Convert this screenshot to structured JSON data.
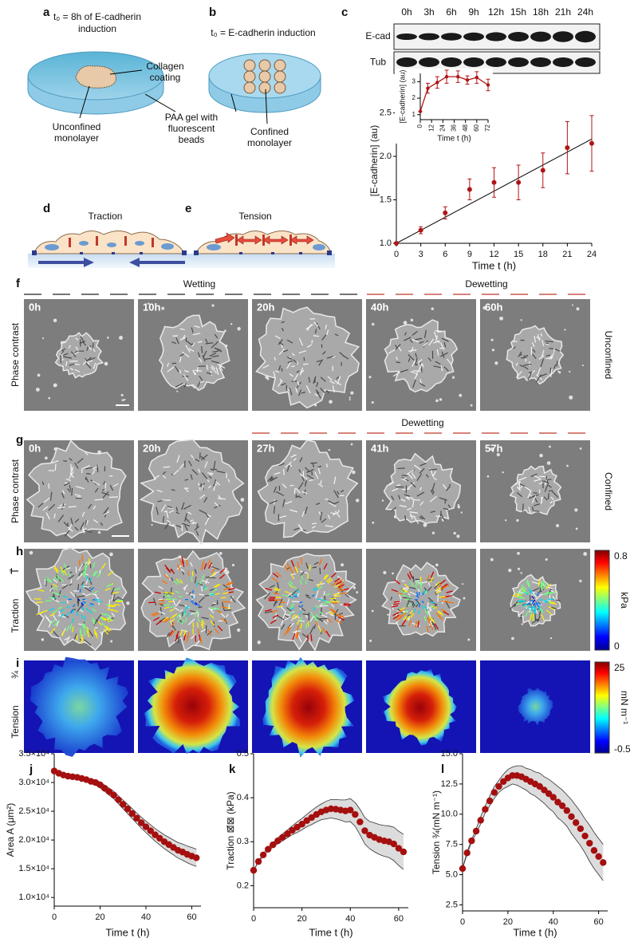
{
  "panel_a": {
    "label": "a",
    "title": [
      "t₀ = 8h of E-cadherin",
      "induction"
    ],
    "collagen": [
      "Collagen",
      "coating"
    ],
    "monolayer": [
      "Unconfined",
      "monolayer"
    ],
    "gel": [
      "PAA gel with",
      "fluorescent",
      "beads"
    ]
  },
  "panel_b": {
    "label": "b",
    "title": "t₀ = E-cadherin induction",
    "monolayer": [
      "Confined",
      "monolayer"
    ]
  },
  "panel_c": {
    "label": "c",
    "blot": {
      "lanes": [
        "0h",
        "3h",
        "6h",
        "9h",
        "12h",
        "15h",
        "18h",
        "21h",
        "24h"
      ],
      "rows": [
        "E-cad",
        "Tub"
      ]
    }
  },
  "panel_d": {
    "label": "d",
    "title": "Traction"
  },
  "panel_e": {
    "label": "e",
    "title": "Tension"
  },
  "panel_f": {
    "label": "f",
    "phases": [
      "Wetting",
      "Dewetting"
    ],
    "times": [
      "0h",
      "10h",
      "20h",
      "40h",
      "60h"
    ],
    "row_label": "Phase contrast",
    "condition": "Unconfined"
  },
  "panel_g": {
    "label": "g",
    "phase": "Dewetting",
    "times": [
      "0h",
      "20h",
      "27h",
      "41h",
      "57h"
    ],
    "row_label": "Phase contrast",
    "condition": "Confined"
  },
  "panel_h": {
    "label": "h",
    "row_label": "Traction",
    "symbol": "T⃗",
    "colorbar": {
      "max": 0.8,
      "unit": "kPa",
      "min": 0
    }
  },
  "panel_i": {
    "label": "i",
    "row_label": "Tension",
    "symbol": "¾",
    "colorbar": {
      "max": 25,
      "unit": "mN m⁻¹",
      "min": -0.5
    }
  },
  "chart_data": [
    {
      "type": "scatter",
      "xlabel": "Time   t (h)",
      "ylabel": "[E-cadherin] (au)",
      "x": [
        0,
        3,
        6,
        9,
        12,
        15,
        18,
        21,
        24
      ],
      "xlim": [
        0,
        24
      ],
      "xticks": [
        0,
        3,
        6,
        9,
        12,
        15,
        18,
        21,
        24
      ],
      "ylim": [
        1.0,
        2.9
      ],
      "yticks": [
        {
          "value": 1,
          "label": "1.0"
        },
        1.5,
        {
          "value": 2,
          "label": "2.0"
        },
        2.5
      ],
      "series": [
        {
          "color": "#b01515",
          "values": [
            1.0,
            1.15,
            1.35,
            1.62,
            1.7,
            1.7,
            1.84,
            2.1,
            2.15
          ],
          "errors": [
            0,
            0.04,
            0.07,
            0.12,
            0.17,
            0.2,
            0.2,
            0.3,
            0.32
          ]
        }
      ],
      "fit": {
        "x": [
          0,
          24
        ],
        "values": [
          1.0,
          2.2
        ],
        "color": "#000000"
      }
    },
    {
      "type": "line",
      "xlabel": "Time  t (h)",
      "ylabel": "[E-cadherin] (au)",
      "x": [
        0,
        8,
        18,
        28,
        40,
        50,
        60,
        72
      ],
      "xlim": [
        0,
        72
      ],
      "xticks": [
        0,
        12,
        24,
        36,
        48,
        60,
        72
      ],
      "ylim": [
        0.7,
        3.5
      ],
      "yticks": [
        1,
        2,
        3
      ],
      "series": [
        {
          "color": "#b01515",
          "values": [
            1.2,
            2.6,
            2.95,
            3.3,
            3.3,
            3.1,
            3.25,
            2.8
          ],
          "errors": [
            0,
            0.3,
            0.35,
            0.4,
            0.35,
            0.25,
            0.35,
            0.35
          ]
        }
      ]
    },
    {
      "type": "scatter",
      "panel": "j",
      "xlabel": "Time    t (h)",
      "ylabel": "Area   A (μm²)",
      "x": [
        0,
        2,
        4,
        6,
        8,
        10,
        12,
        14,
        16,
        18,
        20,
        22,
        24,
        26,
        28,
        30,
        32,
        34,
        36,
        38,
        40,
        42,
        44,
        46,
        48,
        50,
        52,
        54,
        56,
        58,
        60,
        62
      ],
      "xlim": [
        0,
        64
      ],
      "xticks": [
        0,
        20,
        40,
        60
      ],
      "ylim": [
        8500,
        35000
      ],
      "yticks": [
        {
          "value": 10000,
          "label": "1.0×10⁴"
        },
        {
          "value": 15000,
          "label": "1.5×10⁴"
        },
        {
          "value": 20000,
          "label": "2.0×10⁴"
        },
        {
          "value": 25000,
          "label": "2.5×10⁴"
        },
        {
          "value": 30000,
          "label": "3.0×10⁴"
        },
        {
          "value": 35000,
          "label": "3.5×10⁴"
        }
      ],
      "series": [
        {
          "color": "#a50f0f",
          "values": [
            32000,
            31600,
            31300,
            31100,
            31000,
            30900,
            30700,
            30500,
            30200,
            30000,
            29600,
            29000,
            28400,
            27800,
            27000,
            26200,
            25400,
            24600,
            23800,
            23000,
            22300,
            21600,
            20900,
            20300,
            19700,
            19200,
            18700,
            18200,
            17900,
            17500,
            17200,
            16900
          ]
        }
      ],
      "band": {
        "color": "#dcdcdc",
        "upper": [
          32000,
          31650,
          31400,
          31250,
          31200,
          31150,
          31000,
          30850,
          30600,
          30450,
          30100,
          29550,
          29000,
          28450,
          27700,
          26950,
          26200,
          25450,
          24700,
          23950,
          23300,
          22650,
          22000,
          21450,
          20900,
          20450,
          20000,
          19550,
          19300,
          18950,
          18700,
          18400
        ],
        "lower": [
          32000,
          31550,
          31200,
          30950,
          30800,
          30650,
          30400,
          30150,
          29800,
          29550,
          29100,
          28450,
          27800,
          27150,
          26300,
          25450,
          24600,
          23750,
          22900,
          22050,
          21300,
          20550,
          19800,
          19150,
          18500,
          17950,
          17400,
          16850,
          16500,
          16050,
          15700,
          15400
        ]
      }
    },
    {
      "type": "scatter",
      "panel": "k",
      "xlabel": "Time    t (h)",
      "ylabel": "Traction  ⊠⃗⊠ (kPa)",
      "x": [
        0,
        2,
        4,
        6,
        8,
        10,
        12,
        14,
        16,
        18,
        20,
        22,
        24,
        26,
        28,
        30,
        32,
        34,
        36,
        38,
        40,
        42,
        44,
        46,
        48,
        50,
        52,
        54,
        56,
        58,
        60,
        62
      ],
      "xlim": [
        0,
        64
      ],
      "xticks": [
        0,
        20,
        40,
        60
      ],
      "ylim": [
        0.15,
        0.5
      ],
      "yticks": [
        0.2,
        0.3,
        0.4,
        0.5
      ],
      "series": [
        {
          "color": "#a50f0f",
          "values": [
            0.235,
            0.255,
            0.27,
            0.283,
            0.293,
            0.302,
            0.31,
            0.318,
            0.326,
            0.333,
            0.34,
            0.348,
            0.355,
            0.362,
            0.368,
            0.372,
            0.375,
            0.374,
            0.372,
            0.37,
            0.372,
            0.362,
            0.345,
            0.325,
            0.315,
            0.31,
            0.305,
            0.302,
            0.3,
            0.295,
            0.285,
            0.277
          ]
        }
      ],
      "band": {
        "color": "#dcdcdc",
        "upper": [
          0.235,
          0.256,
          0.273,
          0.287,
          0.298,
          0.309,
          0.318,
          0.327,
          0.336,
          0.345,
          0.353,
          0.362,
          0.371,
          0.379,
          0.386,
          0.392,
          0.396,
          0.396,
          0.395,
          0.395,
          0.398,
          0.389,
          0.374,
          0.355,
          0.346,
          0.343,
          0.339,
          0.337,
          0.336,
          0.333,
          0.324,
          0.317
        ],
        "lower": [
          0.235,
          0.254,
          0.267,
          0.279,
          0.288,
          0.295,
          0.302,
          0.309,
          0.316,
          0.321,
          0.327,
          0.334,
          0.339,
          0.345,
          0.35,
          0.352,
          0.354,
          0.352,
          0.349,
          0.345,
          0.346,
          0.335,
          0.316,
          0.295,
          0.284,
          0.277,
          0.271,
          0.267,
          0.264,
          0.257,
          0.246,
          0.237
        ]
      }
    },
    {
      "type": "scatter",
      "panel": "l",
      "xlabel": "Time    t (h)",
      "ylabel": "Tension  ¾(mN m⁻¹)",
      "x": [
        0,
        2,
        4,
        6,
        8,
        10,
        12,
        14,
        16,
        18,
        20,
        22,
        24,
        26,
        28,
        30,
        32,
        34,
        36,
        38,
        40,
        42,
        44,
        46,
        48,
        50,
        52,
        54,
        56,
        58,
        60,
        62
      ],
      "xlim": [
        0,
        64
      ],
      "xticks": [
        0,
        20,
        40,
        60
      ],
      "ylim": [
        2,
        15
      ],
      "yticks": [
        2.5,
        {
          "value": 5,
          "label": "5.0"
        },
        7.5,
        {
          "value": 10,
          "label": "10.0"
        },
        12.5,
        {
          "value": 15,
          "label": "15.0"
        }
      ],
      "series": [
        {
          "color": "#a50f0f",
          "values": [
            5.5,
            6.8,
            7.8,
            8.6,
            9.5,
            10.4,
            11.1,
            11.8,
            12.3,
            12.7,
            13.0,
            13.2,
            13.2,
            13.1,
            12.9,
            12.7,
            12.5,
            12.3,
            12.0,
            11.7,
            11.4,
            11.0,
            10.7,
            10.3,
            9.8,
            9.3,
            8.8,
            8.2,
            7.6,
            7.0,
            6.5,
            6.0
          ]
        }
      ],
      "band": {
        "color": "#dcdcdc",
        "upper": [
          5.5,
          6.9,
          7.9,
          8.8,
          9.8,
          10.7,
          11.5,
          12.3,
          12.8,
          13.3,
          13.7,
          13.9,
          14.0,
          14.0,
          13.8,
          13.7,
          13.5,
          13.4,
          13.1,
          12.9,
          12.6,
          12.3,
          12.0,
          11.6,
          11.2,
          10.7,
          10.2,
          9.6,
          9.1,
          8.5,
          8.0,
          7.5
        ],
        "lower": [
          5.5,
          6.7,
          7.7,
          8.4,
          9.2,
          10.1,
          10.7,
          11.3,
          11.8,
          12.1,
          12.3,
          12.5,
          12.4,
          12.2,
          12.0,
          11.7,
          11.5,
          11.2,
          10.9,
          10.5,
          10.2,
          9.7,
          9.4,
          9.0,
          8.4,
          7.9,
          7.4,
          6.8,
          6.1,
          5.5,
          5.0,
          4.5
        ]
      }
    }
  ]
}
